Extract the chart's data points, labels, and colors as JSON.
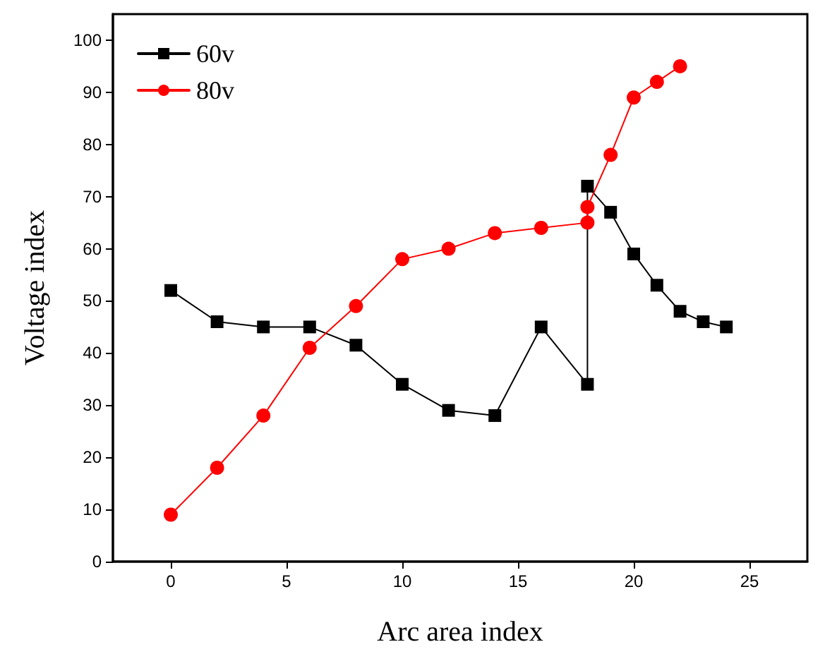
{
  "chart_data": {
    "type": "line",
    "xlabel": "Arc area index",
    "ylabel": "Voltage index",
    "xlim": [
      -2.5,
      27.5
    ],
    "xticks": [
      0,
      5,
      10,
      15,
      20,
      25
    ],
    "ylim": [
      0,
      105
    ],
    "yticks": [
      0,
      10,
      20,
      30,
      40,
      50,
      60,
      70,
      80,
      90,
      100
    ],
    "grid": false,
    "legend": "top left",
    "series": [
      {
        "name": "60v",
        "color": "#000000",
        "marker": "square",
        "x": [
          0,
          2,
          4,
          6,
          8,
          10,
          12,
          14,
          16,
          18,
          18,
          19,
          20,
          21,
          22,
          23,
          24
        ],
        "values": [
          52,
          46,
          45,
          45,
          41.5,
          34,
          29,
          28,
          45,
          34,
          72,
          67,
          59,
          53,
          48,
          46,
          45
        ]
      },
      {
        "name": "80v",
        "color": "#ff0000",
        "marker": "circle",
        "x": [
          0,
          2,
          4,
          6,
          8,
          10,
          12,
          14,
          16,
          18,
          18,
          19,
          20,
          21,
          22
        ],
        "values": [
          9,
          18,
          28,
          41,
          49,
          58,
          60,
          63,
          64,
          65,
          68,
          78,
          89,
          92,
          95
        ]
      }
    ]
  }
}
